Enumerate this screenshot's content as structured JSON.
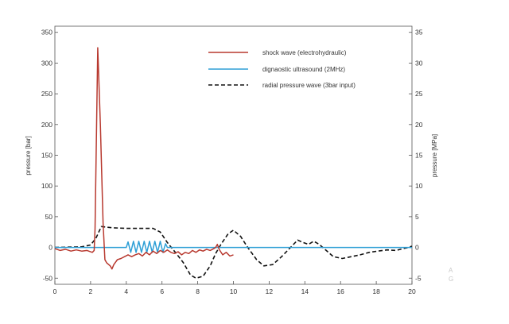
{
  "chart_data": {
    "type": "line",
    "xlabel": "",
    "ylabel": "pressure [bar]",
    "ylabel_right": "pressure [MPa]",
    "xlim": [
      0,
      20
    ],
    "ylim": [
      -60,
      360
    ],
    "ylim_right": [
      -6,
      36
    ],
    "x_ticks": [
      0,
      2,
      4,
      6,
      8,
      10,
      12,
      14,
      16,
      18,
      20
    ],
    "y_ticks": [
      -50,
      0,
      50,
      100,
      150,
      200,
      250,
      300,
      350
    ],
    "y_ticks_right": [
      -5,
      0,
      5,
      10,
      15,
      20,
      25,
      30,
      35
    ],
    "grid": false,
    "legend_position": "top-right",
    "series": [
      {
        "name": "shock wave (electrohydraulic)",
        "color": "#b8392f",
        "style": "solid",
        "points": [
          [
            0,
            -2
          ],
          [
            0.3,
            -5
          ],
          [
            0.6,
            -3
          ],
          [
            0.9,
            -6
          ],
          [
            1.2,
            -4
          ],
          [
            1.5,
            -6
          ],
          [
            1.8,
            -5
          ],
          [
            2.1,
            -8
          ],
          [
            2.2,
            -5
          ],
          [
            2.25,
            30
          ],
          [
            2.4,
            325
          ],
          [
            2.55,
            200
          ],
          [
            2.7,
            40
          ],
          [
            2.8,
            -20
          ],
          [
            2.9,
            -25
          ],
          [
            3.1,
            -30
          ],
          [
            3.2,
            -35
          ],
          [
            3.3,
            -28
          ],
          [
            3.5,
            -20
          ],
          [
            3.7,
            -18
          ],
          [
            3.9,
            -15
          ],
          [
            4.1,
            -12
          ],
          [
            4.3,
            -15
          ],
          [
            4.5,
            -12
          ],
          [
            4.7,
            -10
          ],
          [
            4.9,
            -14
          ],
          [
            5.1,
            -8
          ],
          [
            5.3,
            -12
          ],
          [
            5.5,
            -6
          ],
          [
            5.7,
            -10
          ],
          [
            5.9,
            -5
          ],
          [
            6.1,
            -8
          ],
          [
            6.3,
            -4
          ],
          [
            6.5,
            -8
          ],
          [
            6.7,
            -10
          ],
          [
            6.9,
            -7
          ],
          [
            7.1,
            -12
          ],
          [
            7.3,
            -8
          ],
          [
            7.5,
            -10
          ],
          [
            7.7,
            -5
          ],
          [
            7.9,
            -8
          ],
          [
            8.1,
            -4
          ],
          [
            8.3,
            -6
          ],
          [
            8.5,
            -3
          ],
          [
            8.7,
            -5
          ],
          [
            8.9,
            -2
          ],
          [
            9.0,
            0
          ],
          [
            9.1,
            5
          ],
          [
            9.2,
            -3
          ],
          [
            9.4,
            -12
          ],
          [
            9.6,
            -8
          ],
          [
            9.8,
            -14
          ],
          [
            10.0,
            -12
          ]
        ]
      },
      {
        "name": "dignaostic ultrasound (2MHz)",
        "color": "#2e9fd6",
        "style": "solid",
        "points": [
          [
            0,
            0
          ],
          [
            4.0,
            0
          ],
          [
            4.1,
            9
          ],
          [
            4.25,
            -8
          ],
          [
            4.4,
            10
          ],
          [
            4.55,
            -8
          ],
          [
            4.7,
            10
          ],
          [
            4.85,
            -8
          ],
          [
            5.0,
            10
          ],
          [
            5.15,
            -8
          ],
          [
            5.3,
            10
          ],
          [
            5.45,
            -8
          ],
          [
            5.6,
            10
          ],
          [
            5.75,
            -8
          ],
          [
            5.9,
            10
          ],
          [
            6.05,
            -8
          ],
          [
            6.2,
            6
          ],
          [
            6.3,
            0
          ],
          [
            20,
            0
          ]
        ]
      },
      {
        "name": "radial pressure wave (3bar input)",
        "color": "#111111",
        "style": "dashed",
        "points": [
          [
            0,
            0
          ],
          [
            1.5,
            1
          ],
          [
            2.0,
            4
          ],
          [
            2.3,
            15
          ],
          [
            2.6,
            34
          ],
          [
            3.2,
            32
          ],
          [
            4.0,
            31
          ],
          [
            5.5,
            31
          ],
          [
            5.9,
            25
          ],
          [
            6.3,
            8
          ],
          [
            6.8,
            -10
          ],
          [
            7.2,
            -25
          ],
          [
            7.6,
            -45
          ],
          [
            7.9,
            -50
          ],
          [
            8.3,
            -47
          ],
          [
            8.7,
            -30
          ],
          [
            9.0,
            -10
          ],
          [
            9.3,
            5
          ],
          [
            9.7,
            22
          ],
          [
            10.0,
            28
          ],
          [
            10.4,
            18
          ],
          [
            10.8,
            0
          ],
          [
            11.3,
            -20
          ],
          [
            11.7,
            -30
          ],
          [
            12.2,
            -28
          ],
          [
            12.7,
            -15
          ],
          [
            13.2,
            0
          ],
          [
            13.6,
            12
          ],
          [
            13.9,
            8
          ],
          [
            14.2,
            5
          ],
          [
            14.5,
            10
          ],
          [
            14.8,
            5
          ],
          [
            15.2,
            -5
          ],
          [
            15.6,
            -15
          ],
          [
            16.1,
            -18
          ],
          [
            16.6,
            -15
          ],
          [
            17.1,
            -12
          ],
          [
            17.6,
            -8
          ],
          [
            18.1,
            -6
          ],
          [
            18.6,
            -4
          ],
          [
            19.1,
            -5
          ],
          [
            19.5,
            -2
          ],
          [
            19.8,
            0
          ],
          [
            20,
            2
          ]
        ]
      }
    ]
  },
  "corner_marks": [
    "A",
    "G"
  ]
}
